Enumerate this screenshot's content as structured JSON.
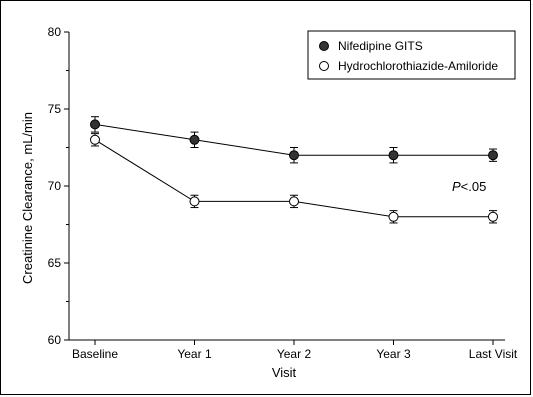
{
  "chart_data": {
    "type": "line",
    "categories": [
      "Baseline",
      "Year 1",
      "Year 2",
      "Year 3",
      "Last Visit"
    ],
    "series": [
      {
        "name": "Nifedipine GITS",
        "values": [
          74,
          73,
          72,
          72,
          72
        ],
        "error": [
          0.5,
          0.5,
          0.5,
          0.5,
          0.4
        ],
        "marker": "filled",
        "color": "#333333"
      },
      {
        "name": "Hydrochlorothiazide-Amiloride",
        "values": [
          73,
          69,
          69,
          68,
          68
        ],
        "error": [
          0.4,
          0.4,
          0.4,
          0.4,
          0.4
        ],
        "marker": "open",
        "color": "#000000"
      }
    ],
    "xlabel": "Visit",
    "ylabel": "Creatinine Clearance, mL/min",
    "ylim": [
      60,
      80
    ],
    "yticks": [
      60,
      65,
      70,
      75,
      80
    ],
    "legend_position": "top-right",
    "annotation": {
      "italic": "P",
      "rest": "<.05"
    },
    "grid": false
  }
}
